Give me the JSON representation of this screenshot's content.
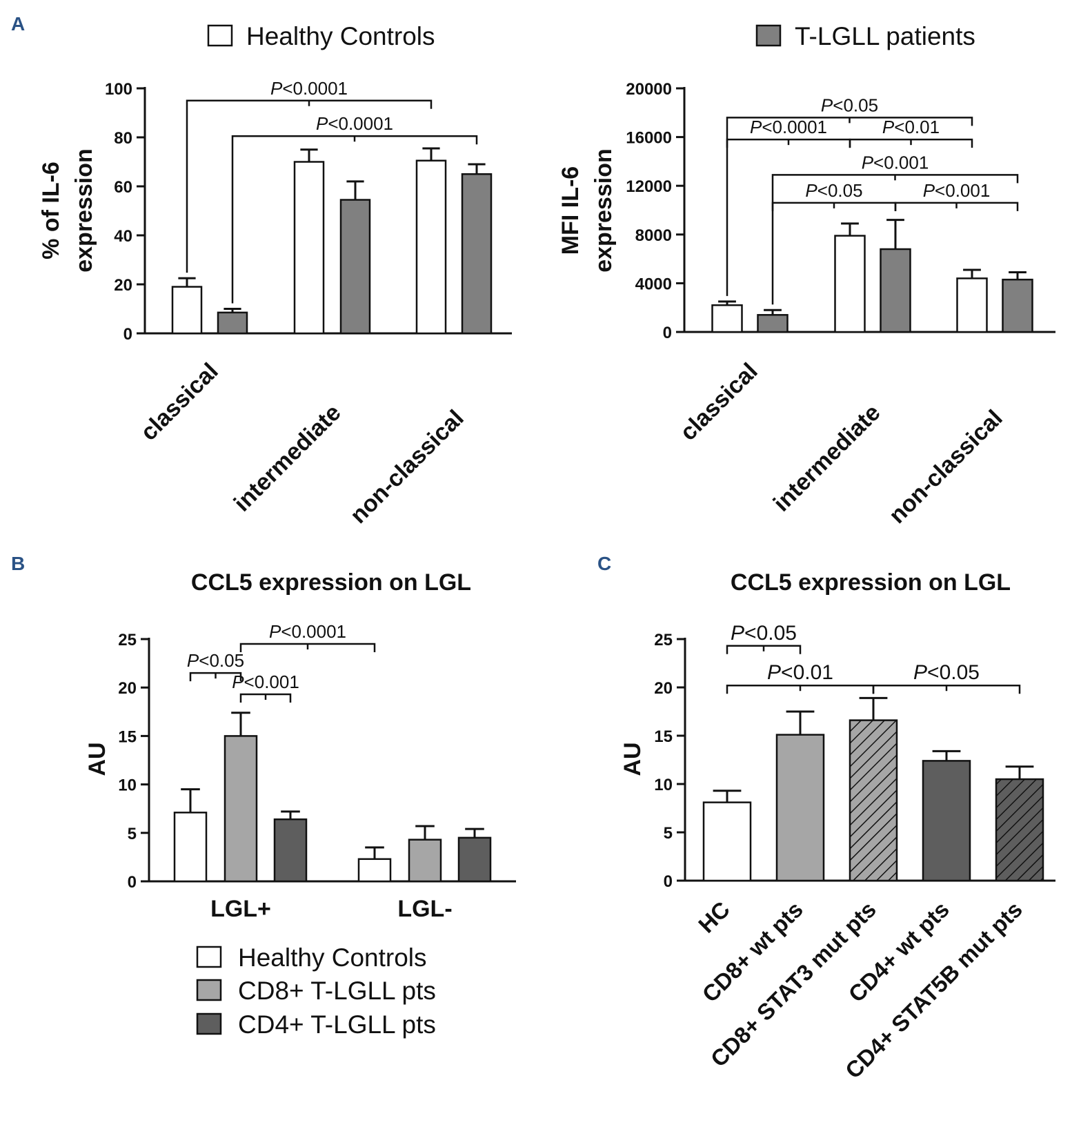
{
  "figure_labels": {
    "A": "A",
    "B": "B",
    "C": "C"
  },
  "legend_a": {
    "items": [
      {
        "label": "Healthy Controls",
        "color": "#ffffff"
      },
      {
        "label": "T-LGLL patients",
        "color": "#808080"
      }
    ]
  },
  "legend_b": {
    "items": [
      {
        "label": "Healthy Controls",
        "color": "#ffffff"
      },
      {
        "label": "CD8+ T-LGLL pts",
        "color": "#a6a6a6"
      },
      {
        "label": "CD4+ T-LGLL pts",
        "color": "#5e5e5e"
      }
    ]
  },
  "colors": {
    "healthy": "#ffffff",
    "patients": "#808080",
    "cd8": "#a6a6a6",
    "cd4": "#5e5e5e",
    "axis": "#111111",
    "panel_letter": "#2a5285"
  },
  "chart_data": [
    {
      "id": "A1",
      "type": "bar",
      "title": "",
      "xlabel": "",
      "ylabel": "% of IL-6 expression",
      "ylabel_lines": [
        "% of IL-6",
        "expression"
      ],
      "ylim": [
        0,
        100
      ],
      "yticks": [
        0,
        20,
        40,
        60,
        80,
        100
      ],
      "categories": [
        "classical",
        "intermediate",
        "non-classical"
      ],
      "series": [
        {
          "name": "Healthy Controls",
          "color": "#ffffff",
          "values": [
            19,
            70,
            70.5
          ],
          "errors": [
            3.5,
            5,
            5
          ]
        },
        {
          "name": "T-LGLL patients",
          "color": "#808080",
          "values": [
            8.5,
            54.5,
            65
          ],
          "errors": [
            1.5,
            7.5,
            4
          ]
        }
      ],
      "annotations": [
        {
          "text": "P<0.0001",
          "from": [
            0,
            0
          ],
          "to": [
            2,
            0
          ],
          "level": 95
        },
        {
          "text": "P<0.0001",
          "from": [
            0,
            1
          ],
          "to": [
            2,
            1
          ],
          "level": 80.5
        }
      ]
    },
    {
      "id": "A2",
      "type": "bar",
      "title": "",
      "xlabel": "",
      "ylabel": "MFI IL-6 expression",
      "ylabel_lines": [
        "MFI IL-6",
        "expression"
      ],
      "ylim": [
        0,
        20000
      ],
      "yticks": [
        0,
        4000,
        8000,
        12000,
        16000,
        20000
      ],
      "categories": [
        "classical",
        "intermediate",
        "non-classical"
      ],
      "series": [
        {
          "name": "Healthy Controls",
          "color": "#ffffff",
          "values": [
            2200,
            7900,
            4400
          ],
          "errors": [
            300,
            1000,
            700
          ]
        },
        {
          "name": "T-LGLL patients",
          "color": "#808080",
          "values": [
            1400,
            6800,
            4300
          ],
          "errors": [
            400,
            2400,
            600
          ]
        }
      ],
      "annotations": [
        {
          "text": "P<0.05",
          "from": [
            0,
            0
          ],
          "to": [
            2,
            0
          ],
          "level": 17600
        },
        {
          "text": "P<0.0001",
          "from": [
            0,
            0
          ],
          "to": [
            1,
            0
          ],
          "level": 15800
        },
        {
          "text": "P<0.01",
          "from": [
            1,
            0
          ],
          "to": [
            2,
            0
          ],
          "level": 15800
        },
        {
          "text": "P<0.001",
          "from": [
            0,
            1
          ],
          "to": [
            2,
            1
          ],
          "level": 12900
        },
        {
          "text": "P<0.05",
          "from": [
            0,
            1
          ],
          "to": [
            1,
            1
          ],
          "level": 10600
        },
        {
          "text": "P<0.001",
          "from": [
            1,
            1
          ],
          "to": [
            2,
            1
          ],
          "level": 10600
        }
      ]
    },
    {
      "id": "B",
      "type": "bar",
      "title": "CCL5 expression on LGL",
      "xlabel": "",
      "ylabel": "AU",
      "ylim": [
        0,
        25
      ],
      "yticks": [
        0,
        5,
        10,
        15,
        20,
        25
      ],
      "categories": [
        "LGL+",
        "LGL-"
      ],
      "series": [
        {
          "name": "Healthy Controls",
          "color": "#ffffff",
          "values": [
            7.1,
            2.3
          ],
          "errors": [
            2.4,
            1.2
          ]
        },
        {
          "name": "CD8+ T-LGLL pts",
          "color": "#a6a6a6",
          "values": [
            15,
            4.3
          ],
          "errors": [
            2.4,
            1.4
          ]
        },
        {
          "name": "CD4+ T-LGLL pts",
          "color": "#5e5e5e",
          "values": [
            6.4,
            4.5
          ],
          "errors": [
            0.8,
            0.9
          ]
        }
      ],
      "annotations": [
        {
          "text": "P<0.0001",
          "from": [
            0,
            1
          ],
          "to": [
            1,
            0
          ],
          "level": 24.5
        },
        {
          "text": "P<0.05",
          "from": [
            0,
            0
          ],
          "to": [
            0,
            1
          ],
          "level": 21.5
        },
        {
          "text": "P<0.001",
          "from": [
            0,
            1
          ],
          "to": [
            0,
            2
          ],
          "level": 19.3
        }
      ]
    },
    {
      "id": "C",
      "type": "bar",
      "title": "CCL5 expression on LGL",
      "xlabel": "",
      "ylabel": "AU",
      "ylim": [
        0,
        25
      ],
      "yticks": [
        0,
        5,
        10,
        15,
        20,
        25
      ],
      "categories": [
        "HC",
        "CD8+ wt pts",
        "CD8+ STAT3 mut pts",
        "CD4+ wt pts",
        "CD4+ STAT5B mut pts"
      ],
      "values": [
        8.1,
        15.1,
        16.6,
        12.4,
        10.5
      ],
      "errors": [
        1.2,
        2.4,
        2.3,
        1.0,
        1.3
      ],
      "bar_styles": [
        "white",
        "light",
        "light-hatched",
        "dark",
        "dark-hatched"
      ],
      "annotations": [
        {
          "text": "P<0.05",
          "from": 0,
          "to": 1,
          "level": 24.3
        },
        {
          "text": "P<0.01",
          "from": 0,
          "to": 2,
          "level": 20.2
        },
        {
          "text": "P<0.05",
          "from": 2,
          "to": 4,
          "level": 20.2
        }
      ]
    }
  ]
}
